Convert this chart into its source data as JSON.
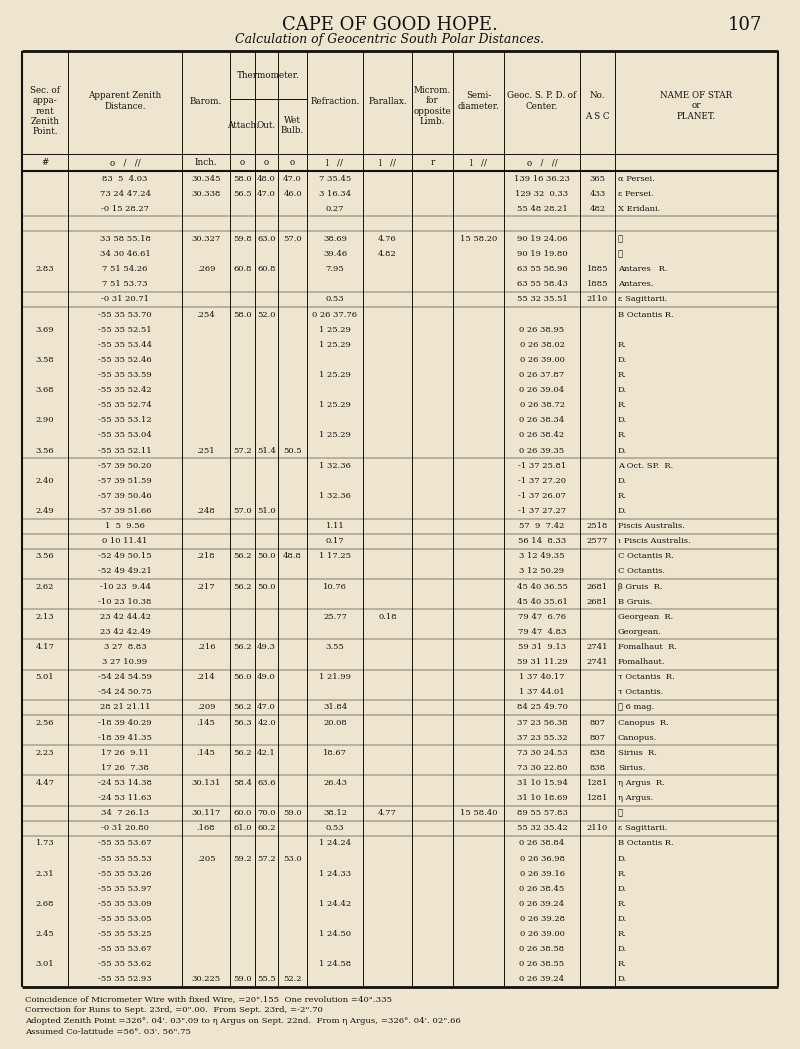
{
  "page_title": "CAPE OF GOOD HOPE.",
  "page_number": "107",
  "section_title": "Calculation of Geocentric South Polar Distances.",
  "bg_color": "#ede5ce",
  "text_color": "#111111",
  "footer_lines": [
    "Coincidence of Micrometer Wire with fixed Wire, =20\".155  One revolution =40\".335",
    "Correction for Runs to Sept. 23rd, =0\".00.  From Sept. 23rd, =-2\".70",
    "Adopted Zenith Point =326°. 04'. 03\".09 to η Argus on Sept. 22nd.  From η Argus, =326°. 04'. 02\".66",
    "Assumed Co-latitude =56°. 03'. 56\".75"
  ],
  "rows": [
    [
      "",
      "83  5  4.03",
      "30.345",
      "58.0",
      "48.0",
      "47.0",
      "7 35.45",
      "",
      "",
      "",
      "139 16 36.23",
      "365",
      "α Persei."
    ],
    [
      "",
      "73 24 47.24",
      "30.338",
      "56.5",
      "47.0",
      "46.0",
      "3 16.34",
      "",
      "",
      "",
      "129 32  0.33",
      "433",
      "ε Persei."
    ],
    [
      "",
      "-0 15 28.27",
      "",
      "",
      "",
      "",
      "0.27",
      "",
      "",
      "",
      "55 48 28.21",
      "482",
      "X Eridani."
    ],
    [
      "",
      "",
      "",
      "",
      "",
      "",
      "",
      "",
      "",
      "",
      "",
      "",
      ""
    ],
    [
      "",
      "33 58 55.18",
      "30.327",
      "59.8",
      "63.0",
      "57.0",
      "38.69",
      "4.76",
      "",
      "15 58.20",
      "90 19 24.06",
      "",
      "☉"
    ],
    [
      "",
      "34 30 46.61",
      "",
      "",
      "",
      "",
      "39.46",
      "4.82",
      "",
      "",
      "90 19 19.80",
      "",
      "☉"
    ],
    [
      "2.83",
      "7 51 54.26",
      ".269",
      "60.8",
      "60.8",
      "",
      "7.95",
      "",
      "",
      "",
      "63 55 58.96",
      "1885",
      "Antares   R."
    ],
    [
      "",
      "7 51 53.73",
      "",
      "",
      "",
      "",
      "",
      "",
      "",
      "",
      "63 55 58.43",
      "1885",
      "Antares."
    ],
    [
      "",
      "-0 31 20.71",
      "",
      "",
      "",
      "",
      "0.53",
      "",
      "",
      "",
      "55 32 35.51",
      "2110",
      "ε Sagittarii."
    ],
    [
      "",
      "-55 35 53.70",
      ".254",
      "58.0",
      "52.0",
      "",
      "0 26 37.76",
      "",
      "",
      "",
      "",
      "",
      "B Octantis R."
    ],
    [
      "3.69",
      "-55 35 52.51",
      "",
      "",
      "",
      "",
      "1 25.29",
      "",
      "",
      "",
      "0 26 38.95",
      "",
      ""
    ],
    [
      "",
      "-55 35 53.44",
      "",
      "",
      "",
      "",
      "1 25.29",
      "",
      "",
      "",
      "0 26 38.02",
      "",
      "R."
    ],
    [
      "3.58",
      "-55 35 52.46",
      "",
      "",
      "",
      "",
      "",
      "",
      "",
      "",
      "0 26 39.00",
      "",
      "D."
    ],
    [
      "",
      "-55 35 53.59",
      "",
      "",
      "",
      "",
      "1 25.29",
      "",
      "",
      "",
      "0 26 37.87",
      "",
      "R."
    ],
    [
      "3.68",
      "-55 35 52.42",
      "",
      "",
      "",
      "",
      "",
      "",
      "",
      "",
      "0 26 39.04",
      "",
      "D."
    ],
    [
      "",
      "-55 35 52.74",
      "",
      "",
      "",
      "",
      "1 25.29",
      "",
      "",
      "",
      "0 26 38.72",
      "",
      "R."
    ],
    [
      "2.90",
      "-55 35 53.12",
      "",
      "",
      "",
      "",
      "",
      "",
      "",
      "",
      "0 26 38.34",
      "",
      "D."
    ],
    [
      "",
      "-55 35 53.04",
      "",
      "",
      "",
      "",
      "1 25.29",
      "",
      "",
      "",
      "0 26 38.42",
      "",
      "R."
    ],
    [
      "3.56",
      "-55 35 52.11",
      ".251",
      "57.2",
      "51.4",
      "50.5",
      "",
      "",
      "",
      "",
      "0 26 39.35",
      "",
      "D."
    ],
    [
      "",
      "-57 39 50.20",
      "",
      "",
      "",
      "",
      "1 32.36",
      "",
      "",
      "",
      "-1 37 25.81",
      "",
      "A Oct. SP.  R."
    ],
    [
      "2.40",
      "-57 39 51.59",
      "",
      "",
      "",
      "",
      "",
      "",
      "",
      "",
      "-1 37 27.20",
      "",
      "D."
    ],
    [
      "",
      "-57 39 50.46",
      "",
      "",
      "",
      "",
      "1 32.36",
      "",
      "",
      "",
      "-1 37 26.07",
      "",
      "R."
    ],
    [
      "2.49",
      "-57 39 51.66",
      ".248",
      "57.0",
      "51.0",
      "",
      "",
      "",
      "",
      "",
      "-1 37 27.27",
      "",
      "D."
    ],
    [
      "",
      "1  5  9.56",
      "",
      "",
      "",
      "",
      "1.11",
      "",
      "",
      "",
      "57  9  7.42",
      "2518",
      "Piscis Australis."
    ],
    [
      "",
      "0 10 11.41",
      "",
      "",
      "",
      "",
      "0.17",
      "",
      "",
      "",
      "56 14  8.33",
      "2577",
      "ι Piscis Australis."
    ],
    [
      "3.56",
      "-52 49 50.15",
      ".218",
      "56.2",
      "50.0",
      "48.8",
      "1 17.25",
      "",
      "",
      "",
      "3 12 49.35",
      "",
      "C Octantis R."
    ],
    [
      "",
      "-52 49 49.21",
      "",
      "",
      "",
      "",
      "",
      "",
      "",
      "",
      "3 12 50.29",
      "",
      "C Octantis."
    ],
    [
      "2.62",
      "-10 23  9.44",
      ".217",
      "56.2",
      "50.0",
      "",
      "10.76",
      "",
      "",
      "",
      "45 40 36.55",
      "2681",
      "β Gruis  R."
    ],
    [
      "",
      "-10 23 10.38",
      "",
      "",
      "",
      "",
      "",
      "",
      "",
      "",
      "45 40 35.61",
      "2681",
      "B Gruis."
    ],
    [
      "2.13",
      "23 42 44.42",
      "",
      "",
      "",
      "",
      "25.77",
      "0.18",
      "",
      "",
      "79 47  6.76",
      "",
      "Georgean  R."
    ],
    [
      "",
      "23 42 42.49",
      "",
      "",
      "",
      "",
      "",
      "",
      "",
      "",
      "79 47  4.83",
      "",
      "Georgean."
    ],
    [
      "4.17",
      "3 27  8.83",
      ".216",
      "56.2",
      "49.3",
      "",
      "3.55",
      "",
      "",
      "",
      "59 31  9.13",
      "2741",
      "Fomalhaut  R."
    ],
    [
      "",
      "3 27 10.99",
      "",
      "",
      "",
      "",
      "",
      "",
      "",
      "",
      "59 31 11.29",
      "2741",
      "Fomalhaut."
    ],
    [
      "5.01",
      "-54 24 54.59",
      ".214",
      "56.0",
      "49.0",
      "",
      "1 21.99",
      "",
      "",
      "",
      "1 37 40.17",
      "",
      "τ Octantis  R."
    ],
    [
      "",
      "-54 24 50.75",
      "",
      "",
      "",
      "",
      "",
      "",
      "",
      "",
      "1 37 44.01",
      "",
      "τ Octantis."
    ],
    [
      "",
      "28 21 21.11",
      ".209",
      "56.2",
      "47.0",
      "",
      "31.84",
      "",
      "",
      "",
      "84 25 49.70",
      "",
      "✶ 6 mag."
    ],
    [
      "2.56",
      "-18 39 40.29",
      ".145",
      "56.3",
      "42.0",
      "",
      "20.08",
      "",
      "",
      "",
      "37 23 56.38",
      "807",
      "Canopus  R."
    ],
    [
      "",
      "-18 39 41.35",
      "",
      "",
      "",
      "",
      "",
      "",
      "",
      "",
      "37 23 55.32",
      "807",
      "Canopus."
    ],
    [
      "2.23",
      "17 26  9.11",
      ".145",
      "56.2",
      "42.1",
      "",
      "18.67",
      "",
      "",
      "",
      "73 30 24.53",
      "838",
      "Sirius  R."
    ],
    [
      "",
      "17 26  7.38",
      "",
      "",
      "",
      "",
      "",
      "",
      "",
      "",
      "73 30 22.80",
      "838",
      "Sirius."
    ],
    [
      "4.47",
      "-24 53 14.38",
      "30.131",
      "58.4",
      "63.6",
      "",
      "26.43",
      "",
      "",
      "",
      "31 10 15.94",
      "1281",
      "η Argus  R."
    ],
    [
      "",
      "-24 53 11.63",
      "",
      "",
      "",
      "",
      "",
      "",
      "",
      "",
      "31 10 18.69",
      "1281",
      "η Argus."
    ],
    [
      "",
      "34  7 26.13",
      "30.117",
      "60.0",
      "70.0",
      "59.0",
      "38.12",
      "4.77",
      "",
      "15 58.40",
      "89 55 57.83",
      "",
      "☉"
    ],
    [
      "",
      "-0 31 20.80",
      ".168",
      "61.0",
      "60.2",
      "",
      "0.53",
      "",
      "",
      "",
      "55 32 35.42",
      "2110",
      "ε Sagittarii."
    ],
    [
      "1.73",
      "-55 35 53.67",
      "",
      "",
      "",
      "",
      "1 24.24",
      "",
      "",
      "",
      "0 26 38.84",
      "",
      "B Octantis R."
    ],
    [
      "",
      "-55 35 55.53",
      ".205",
      "59.2",
      "57.2",
      "53.0",
      "",
      "",
      "",
      "",
      "0 26 36.98",
      "",
      "D."
    ],
    [
      "2.31",
      "-55 35 53.26",
      "",
      "",
      "",
      "",
      "1 24.33",
      "",
      "",
      "",
      "0 26 39.16",
      "",
      "R."
    ],
    [
      "",
      "-55 35 53.97",
      "",
      "",
      "",
      "",
      "",
      "",
      "",
      "",
      "0 26 38.45",
      "",
      "D."
    ],
    [
      "2.68",
      "-55 35 53.09",
      "",
      "",
      "",
      "",
      "1 24.42",
      "",
      "",
      "",
      "0 26 39.24",
      "",
      "R."
    ],
    [
      "",
      "-55 35 53.05",
      "",
      "",
      "",
      "",
      "",
      "",
      "",
      "",
      "0 26 39.28",
      "",
      "D."
    ],
    [
      "2.45",
      "-55 35 53.25",
      "",
      "",
      "",
      "",
      "1 24.50",
      "",
      "",
      "",
      "0 26 39.00",
      "",
      "R."
    ],
    [
      "",
      "-55 35 53.67",
      "",
      "",
      "",
      "",
      "",
      "",
      "",
      "",
      "0 26 38.58",
      "",
      "D."
    ],
    [
      "3.01",
      "-55 35 53.62",
      "",
      "",
      "",
      "",
      "1 24.58",
      "",
      "",
      "",
      "0 26 38.55",
      "",
      "R."
    ],
    [
      "",
      "-55 35 52.93",
      "30.225",
      "59.0",
      "55.5",
      "52.2",
      "",
      "",
      "",
      "",
      "0 26 39.24",
      "",
      "D."
    ]
  ]
}
